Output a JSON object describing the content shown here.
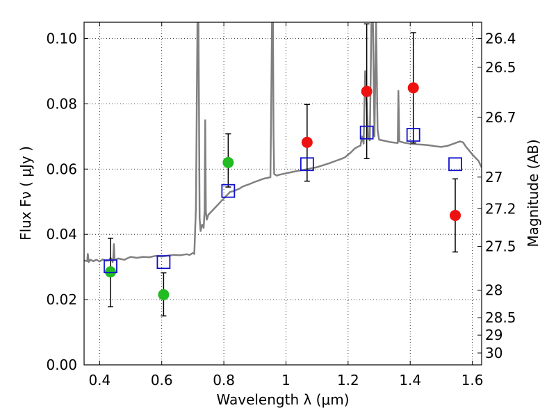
{
  "chart_data": {
    "type": "scatter",
    "xlabel": "Wavelength  λ (μm)",
    "ylabel": "Flux  Fν  ( μJy )",
    "y2label": "Magnitude (AB)",
    "xlim": [
      0.35,
      1.63
    ],
    "ylim": [
      0.0,
      0.105
    ],
    "grid": true,
    "x_ticks": [
      {
        "value": 0.4,
        "label": "0.4"
      },
      {
        "value": 0.6,
        "label": "0.6"
      },
      {
        "value": 0.8,
        "label": "0.8"
      },
      {
        "value": 1.0,
        "label": "1"
      },
      {
        "value": 1.2,
        "label": "1.2"
      },
      {
        "value": 1.4,
        "label": "1.4"
      },
      {
        "value": 1.6,
        "label": "1.6"
      }
    ],
    "y_ticks": [
      {
        "value": 0.0,
        "label": "0.00"
      },
      {
        "value": 0.02,
        "label": "0.02"
      },
      {
        "value": 0.04,
        "label": "0.04"
      },
      {
        "value": 0.06,
        "label": "0.06"
      },
      {
        "value": 0.08,
        "label": "0.08"
      },
      {
        "value": 0.1,
        "label": "0.10"
      }
    ],
    "mag_ticks": [
      {
        "value": 26.4,
        "label": "26.4"
      },
      {
        "value": 26.5,
        "label": "26.5"
      },
      {
        "value": 26.7,
        "label": "26.7"
      },
      {
        "value": 27.0,
        "label": "27"
      },
      {
        "value": 27.2,
        "label": "27.2"
      },
      {
        "value": 27.5,
        "label": "27.5"
      },
      {
        "value": 28.0,
        "label": "28"
      },
      {
        "value": 28.5,
        "label": "28.5"
      },
      {
        "value": 29.0,
        "label": "29"
      },
      {
        "value": 30.0,
        "label": "30"
      }
    ],
    "colors": {
      "model": "#808080",
      "green": "#22bb22",
      "red": "#ee1111",
      "box": "#1111cc",
      "errorbar": "#000000"
    },
    "model_spectrum": {
      "name": "",
      "points": [
        [
          0.35,
          0.032
        ],
        [
          0.36,
          0.0318
        ],
        [
          0.362,
          0.034
        ],
        [
          0.365,
          0.0315
        ],
        [
          0.37,
          0.0322
        ],
        [
          0.38,
          0.0318
        ],
        [
          0.39,
          0.0322
        ],
        [
          0.4,
          0.0317
        ],
        [
          0.41,
          0.0323
        ],
        [
          0.42,
          0.0319
        ],
        [
          0.43,
          0.032
        ],
        [
          0.435,
          0.0328
        ],
        [
          0.44,
          0.0322
        ],
        [
          0.442,
          0.0315
        ],
        [
          0.444,
          0.0328
        ],
        [
          0.446,
          0.037
        ],
        [
          0.448,
          0.0325
        ],
        [
          0.45,
          0.0322
        ],
        [
          0.46,
          0.0326
        ],
        [
          0.47,
          0.0324
        ],
        [
          0.48,
          0.0322
        ],
        [
          0.49,
          0.0327
        ],
        [
          0.5,
          0.0331
        ],
        [
          0.52,
          0.0328
        ],
        [
          0.54,
          0.0331
        ],
        [
          0.56,
          0.033
        ],
        [
          0.58,
          0.0334
        ],
        [
          0.6,
          0.0332
        ],
        [
          0.62,
          0.0335
        ],
        [
          0.64,
          0.0337
        ],
        [
          0.66,
          0.0336
        ],
        [
          0.68,
          0.0339
        ],
        [
          0.69,
          0.0337
        ],
        [
          0.7,
          0.0343
        ],
        [
          0.705,
          0.034
        ],
        [
          0.71,
          0.048
        ],
        [
          0.712,
          0.07
        ],
        [
          0.715,
          0.105
        ],
        [
          0.718,
          0.105
        ],
        [
          0.72,
          0.08
        ],
        [
          0.722,
          0.045
        ],
        [
          0.725,
          0.041
        ],
        [
          0.73,
          0.043
        ],
        [
          0.735,
          0.042
        ],
        [
          0.738,
          0.047
        ],
        [
          0.74,
          0.075
        ],
        [
          0.742,
          0.047
        ],
        [
          0.745,
          0.0445
        ],
        [
          0.75,
          0.046
        ],
        [
          0.76,
          0.047
        ],
        [
          0.77,
          0.048
        ],
        [
          0.78,
          0.049
        ],
        [
          0.79,
          0.05
        ],
        [
          0.8,
          0.051
        ],
        [
          0.81,
          0.052
        ],
        [
          0.82,
          0.053
        ],
        [
          0.83,
          0.0532
        ],
        [
          0.84,
          0.0536
        ],
        [
          0.85,
          0.054
        ],
        [
          0.86,
          0.0546
        ],
        [
          0.87,
          0.055
        ],
        [
          0.88,
          0.0553
        ],
        [
          0.89,
          0.0557
        ],
        [
          0.9,
          0.0561
        ],
        [
          0.91,
          0.0564
        ],
        [
          0.92,
          0.0568
        ],
        [
          0.93,
          0.0571
        ],
        [
          0.94,
          0.0573
        ],
        [
          0.95,
          0.0575
        ],
        [
          0.952,
          0.075
        ],
        [
          0.955,
          0.105
        ],
        [
          0.958,
          0.105
        ],
        [
          0.96,
          0.07
        ],
        [
          0.962,
          0.0585
        ],
        [
          0.97,
          0.058
        ],
        [
          0.98,
          0.0583
        ],
        [
          0.99,
          0.0585
        ],
        [
          1.0,
          0.0587
        ],
        [
          1.02,
          0.0591
        ],
        [
          1.04,
          0.0595
        ],
        [
          1.06,
          0.0598
        ],
        [
          1.08,
          0.0602
        ],
        [
          1.1,
          0.0606
        ],
        [
          1.12,
          0.0612
        ],
        [
          1.14,
          0.0618
        ],
        [
          1.16,
          0.0625
        ],
        [
          1.18,
          0.0632
        ],
        [
          1.19,
          0.0636
        ],
        [
          1.2,
          0.0644
        ],
        [
          1.21,
          0.0652
        ],
        [
          1.22,
          0.0662
        ],
        [
          1.23,
          0.0668
        ],
        [
          1.24,
          0.0672
        ],
        [
          1.245,
          0.07
        ],
        [
          1.25,
          0.0678
        ],
        [
          1.255,
          0.09
        ],
        [
          1.26,
          0.08
        ],
        [
          1.265,
          0.0695
        ],
        [
          1.27,
          0.0688
        ],
        [
          1.275,
          0.105
        ],
        [
          1.28,
          0.105
        ],
        [
          1.285,
          0.07
        ],
        [
          1.29,
          0.105
        ],
        [
          1.295,
          0.072
        ],
        [
          1.3,
          0.069
        ],
        [
          1.32,
          0.0686
        ],
        [
          1.34,
          0.0682
        ],
        [
          1.36,
          0.068
        ],
        [
          1.362,
          0.084
        ],
        [
          1.365,
          0.0685
        ],
        [
          1.38,
          0.0681
        ],
        [
          1.4,
          0.0678
        ],
        [
          1.42,
          0.0676
        ],
        [
          1.44,
          0.0675
        ],
        [
          1.46,
          0.0673
        ],
        [
          1.48,
          0.067
        ],
        [
          1.5,
          0.0668
        ],
        [
          1.52,
          0.0671
        ],
        [
          1.54,
          0.0678
        ],
        [
          1.56,
          0.0685
        ],
        [
          1.57,
          0.0682
        ],
        [
          1.58,
          0.0668
        ],
        [
          1.6,
          0.0645
        ],
        [
          1.62,
          0.0625
        ],
        [
          1.63,
          0.0605
        ]
      ]
    },
    "series": [
      {
        "name": "",
        "color_key": "green",
        "marker": "circle",
        "points": [
          {
            "x": 0.435,
            "y": 0.0285,
            "yerr_low": 0.0178,
            "yerr_high": 0.0388
          },
          {
            "x": 0.606,
            "y": 0.0215,
            "yerr_low": 0.015,
            "yerr_high": 0.0282
          },
          {
            "x": 0.814,
            "y": 0.062,
            "yerr_low": 0.0545,
            "yerr_high": 0.0708
          }
        ]
      },
      {
        "name": "",
        "color_key": "red",
        "marker": "circle",
        "points": [
          {
            "x": 1.068,
            "y": 0.0682,
            "yerr_low": 0.0563,
            "yerr_high": 0.0798
          },
          {
            "x": 1.26,
            "y": 0.0838,
            "yerr_low": 0.0632,
            "yerr_high": 0.1045
          },
          {
            "x": 1.41,
            "y": 0.0849,
            "yerr_low": 0.068,
            "yerr_high": 0.1018
          },
          {
            "x": 1.545,
            "y": 0.0458,
            "yerr_low": 0.0346,
            "yerr_high": 0.057
          }
        ]
      },
      {
        "name": "",
        "color_key": "box",
        "marker": "square-open",
        "points": [
          {
            "x": 0.435,
            "y": 0.0302
          },
          {
            "x": 0.606,
            "y": 0.0315
          },
          {
            "x": 0.814,
            "y": 0.0533
          },
          {
            "x": 1.068,
            "y": 0.0615
          },
          {
            "x": 1.26,
            "y": 0.0712
          },
          {
            "x": 1.41,
            "y": 0.0705
          },
          {
            "x": 1.545,
            "y": 0.0615
          }
        ]
      }
    ]
  }
}
